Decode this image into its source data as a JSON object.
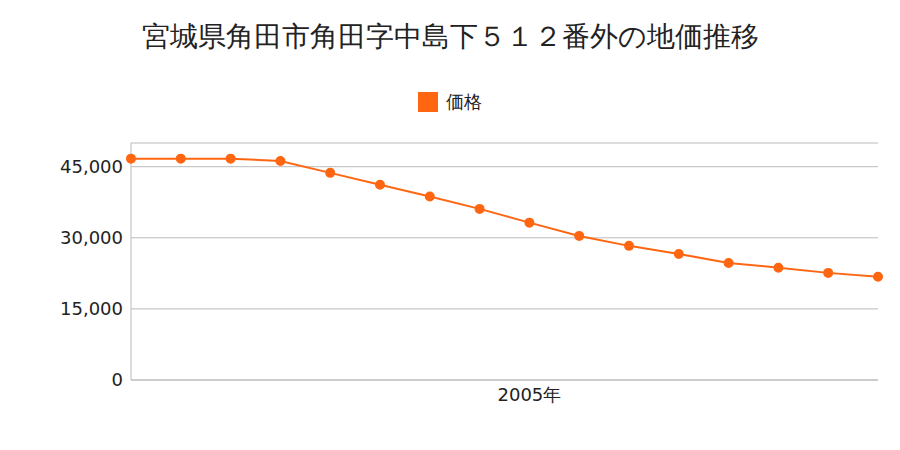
{
  "chart_data": {
    "type": "line",
    "title": "宮城県角田市角田字中島下５１２番外の地価推移",
    "categories": [
      null,
      null,
      null,
      null,
      null,
      null,
      null,
      null,
      "2005年",
      null,
      null,
      null,
      null,
      null,
      null,
      null
    ],
    "series": [
      {
        "name": "価格",
        "color": "#ff6611",
        "marker": "circle",
        "values": [
          46700,
          46700,
          46700,
          46200,
          43700,
          41200,
          38700,
          36100,
          33200,
          30400,
          28300,
          26600,
          24700,
          23700,
          22600,
          21800
        ]
      }
    ],
    "ylim": [
      0,
      50000
    ],
    "yticks": [
      0,
      {
        "value": 15000,
        "label": "15,000"
      },
      {
        "value": 30000,
        "label": "30,000"
      },
      {
        "value": 45000,
        "label": "45,000"
      }
    ],
    "grid": true,
    "legend": "top"
  }
}
